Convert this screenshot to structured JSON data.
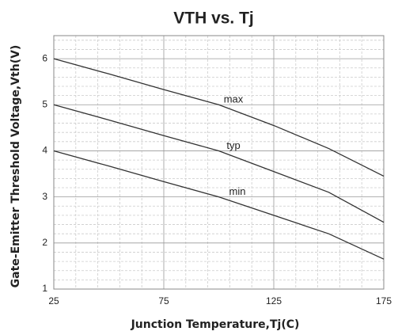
{
  "chart_data": {
    "type": "line",
    "title": "VTH vs. Tj",
    "x_label": "Junction Temperature,Tj(C)",
    "y_label": "Gate-Emitter Threshold Voltage,Vth(V)",
    "x": [
      25,
      50,
      75,
      100,
      125,
      150,
      175
    ],
    "series": [
      {
        "name": "max",
        "color": "#333333",
        "values": [
          6.0,
          5.67,
          5.33,
          5.0,
          4.55,
          4.05,
          3.45
        ]
      },
      {
        "name": "typ",
        "color": "#333333",
        "values": [
          5.0,
          4.67,
          4.33,
          4.0,
          3.55,
          3.1,
          2.45
        ]
      },
      {
        "name": "min",
        "color": "#333333",
        "values": [
          4.0,
          3.67,
          3.33,
          3.0,
          2.6,
          2.2,
          1.65
        ]
      }
    ],
    "xlim": [
      25,
      175
    ],
    "xticks": [
      25,
      75,
      125,
      175
    ],
    "xminorticks": [
      35,
      45,
      55,
      65,
      85,
      95,
      105,
      115,
      135,
      145,
      155,
      165
    ],
    "ylim": [
      1,
      6.5
    ],
    "yticks": [
      1,
      2,
      3,
      4,
      5,
      6
    ],
    "yminorticks": [
      1.2,
      1.4,
      1.6,
      1.8,
      2.2,
      2.4,
      2.6,
      2.8,
      3.2,
      3.4,
      3.6,
      3.8,
      4.2,
      4.4,
      4.6,
      4.8,
      5.2,
      5.4,
      5.6,
      5.8,
      6.2,
      6.4
    ],
    "grid": true
  }
}
